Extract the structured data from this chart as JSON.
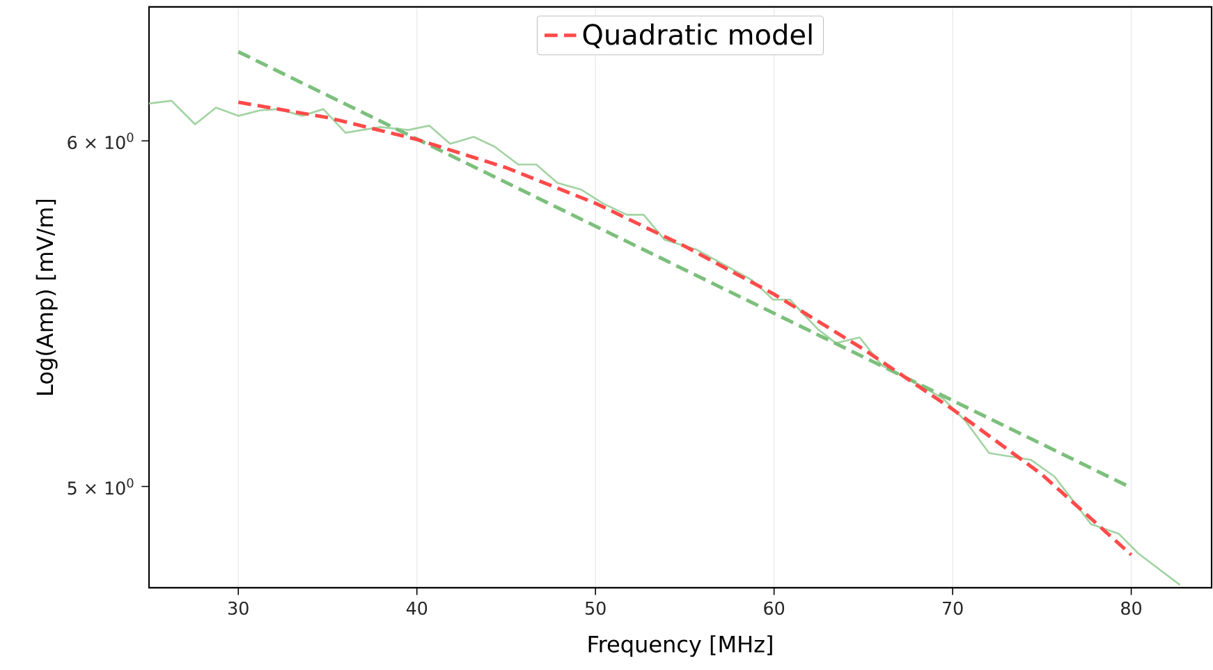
{
  "chart_data": {
    "type": "line",
    "xlabel": "Frequency [MHz]",
    "ylabel": "Log(Amp) [mV/m]",
    "log": "y",
    "grid": "x",
    "legend": "top",
    "xlim": [
      25,
      84.5
    ],
    "xticks": [
      30,
      40,
      50,
      60,
      70,
      80
    ],
    "ylim": [
      4.74,
      6.44
    ],
    "yticks": [
      {
        "value": 5,
        "label": "5 × 10$^{0}$"
      },
      {
        "value": 6,
        "label": "6 × 10$^{0}$"
      }
    ],
    "series": [
      {
        "color": "#a3d3a3",
        "line_style": "solid",
        "x": [
          25.0,
          26.26,
          27.58,
          28.75,
          30.0,
          31.25,
          32.26,
          33.59,
          34.76,
          36.0,
          37.96,
          39.52,
          40.69,
          41.86,
          43.18,
          44.35,
          45.68,
          46.69,
          47.86,
          49.19,
          50.44,
          51.76,
          52.7,
          53.87,
          55.66,
          58.78,
          59.95,
          60.89,
          62.45,
          63.46,
          64.79,
          66.04,
          68.14,
          69.47,
          70.72,
          72.04,
          74.38,
          75.71,
          77.74,
          79.3,
          80.39,
          82.73
        ],
        "values": [
          6.12,
          6.129,
          6.053,
          6.107,
          6.08,
          6.098,
          6.102,
          6.08,
          6.102,
          6.026,
          6.044,
          6.035,
          6.049,
          5.991,
          6.013,
          5.982,
          5.926,
          5.926,
          5.869,
          5.848,
          5.805,
          5.771,
          5.771,
          5.695,
          5.666,
          5.575,
          5.518,
          5.518,
          5.433,
          5.393,
          5.409,
          5.33,
          5.276,
          5.237,
          5.176,
          5.089,
          5.071,
          5.026,
          4.902,
          4.877,
          4.827,
          4.747
        ]
      },
      {
        "color": "#7cbf7c",
        "line_style": "dashed",
        "x": [
          30,
          80
        ],
        "values": [
          6.289,
          4.997
        ]
      },
      {
        "name": "Quadratic model",
        "color": "#ff4a4a",
        "line_style": "dashed",
        "x": [
          30,
          35,
          40,
          45,
          50,
          55,
          60,
          65,
          70,
          75,
          80
        ],
        "values": [
          6.124,
          6.075,
          6.005,
          5.916,
          5.806,
          5.676,
          5.534,
          5.376,
          5.208,
          5.032,
          4.823
        ]
      }
    ]
  }
}
